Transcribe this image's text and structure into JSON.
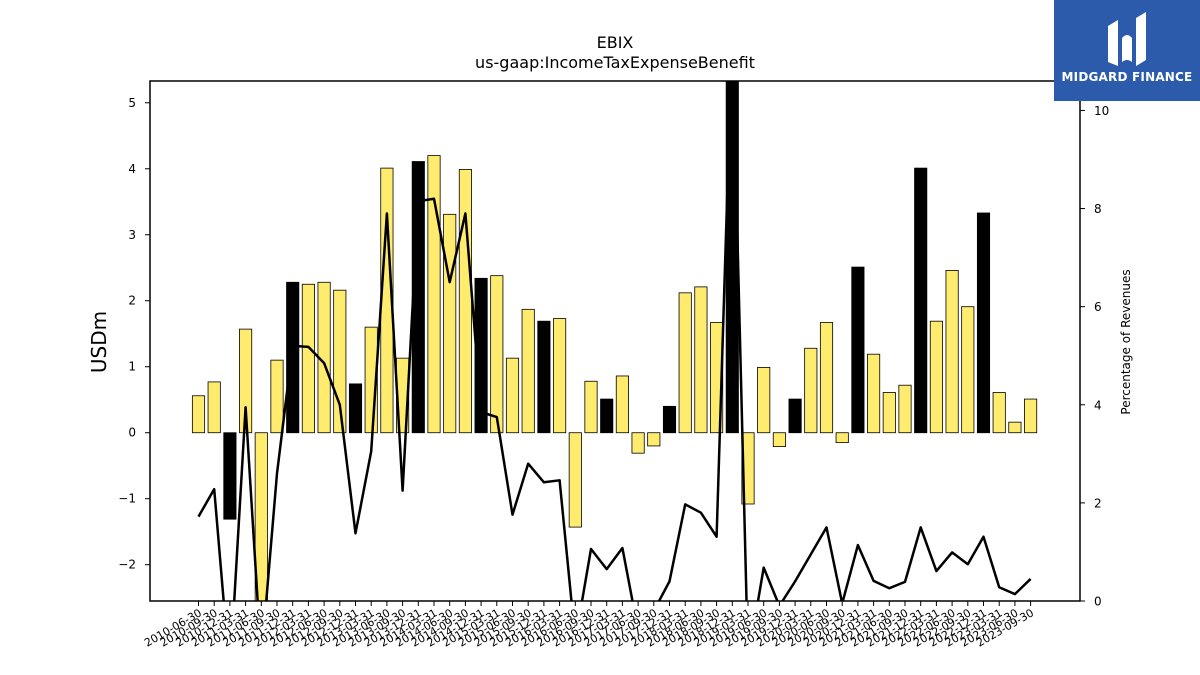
{
  "chart_data": {
    "type": "bar",
    "title": "EBIX",
    "subtitle": "us-gaap:IncomeTaxExpenseBenefit",
    "ylabel": "USDm",
    "ylabel_right": "Percentage of Revenues",
    "ylim": [
      -2.55,
      5.33
    ],
    "ylim_right": [
      0,
      10.6
    ],
    "yticks": [
      -2,
      -1,
      0,
      1,
      2,
      3,
      4,
      5
    ],
    "yticks_right": [
      0,
      2,
      4,
      6,
      8,
      10
    ],
    "colors": {
      "bar_default": "#ffec6e",
      "bar_highlight": "#000000",
      "line": "#000000",
      "bar_edge": "#000000"
    },
    "categories": [
      "2010-06-30",
      "2010-09-30",
      "2010-12-31",
      "2011-03-31",
      "2011-06-30",
      "2011-09-30",
      "2011-12-31",
      "2012-03-31",
      "2012-06-30",
      "2012-09-30",
      "2012-12-31",
      "2013-03-31",
      "2013-06-30",
      "2013-09-30",
      "2013-12-31",
      "2014-03-31",
      "2014-06-30",
      "2014-09-30",
      "2014-12-31",
      "2015-03-31",
      "2015-06-30",
      "2015-09-30",
      "2015-12-31",
      "2016-03-31",
      "2016-06-30",
      "2016-09-30",
      "2016-12-31",
      "2017-03-31",
      "2017-06-30",
      "2017-09-30",
      "2017-12-31",
      "2018-03-31",
      "2018-06-30",
      "2018-09-30",
      "2018-12-31",
      "2019-03-31",
      "2019-06-30",
      "2019-09-30",
      "2019-12-31",
      "2020-03-31",
      "2020-06-30",
      "2020-09-30",
      "2020-12-31",
      "2021-03-31",
      "2021-06-30",
      "2021-09-30",
      "2021-12-31",
      "2022-03-31",
      "2022-06-30",
      "2022-09-30",
      "2022-12-31",
      "2023-03-31",
      "2023-06-30",
      "2023-09-30"
    ],
    "xtick_labels": [
      "2010-06-30",
      "2010-09-30",
      "2010-12-31",
      "2011-03-31",
      "2011-06-30",
      "2011-09-30",
      "2011-12-31",
      "2012-03-31",
      "2012-06-30",
      "2012-09-30",
      "2012-12-31",
      "2013-03-31",
      "2013-06-30",
      "2013-09-30",
      "2013-12-31",
      "2014-03-31",
      "2014-06-30",
      "2014-09-30",
      "2014-12-31",
      "2015-03-31",
      "2015-06-30",
      "2015-09-30",
      "2015-12-31",
      "2016-03-31",
      "2016-06-30",
      "2016-09-30",
      "2016-12-31",
      "2017-03-31",
      "2017-06-30",
      "2017-09-30",
      "2017-12-31",
      "2018-03-31",
      "2018-06-30",
      "2018-09-30",
      "2018-12-31",
      "2019-03-31",
      "2019-06-30",
      "2019-09-30",
      "2019-12-31",
      "2020-03-31",
      "2020-06-30",
      "2020-09-30",
      "2020-12-31",
      "2021-03-31",
      "2021-06-30",
      "2021-09-30",
      "2021-12-31",
      "2022-03-31",
      "2022-06-30",
      "2022-09-30",
      "2022-12-31",
      "2023-03-31",
      "2023-06-30",
      "2023-09-30"
    ],
    "series": [
      {
        "type": "bar",
        "axis": "left",
        "values": [
          0.56,
          0.77,
          -1.31,
          1.57,
          -2.6,
          1.1,
          2.28,
          2.25,
          2.28,
          2.16,
          0.74,
          1.6,
          4.01,
          1.13,
          4.11,
          4.2,
          3.31,
          3.99,
          2.34,
          2.38,
          1.13,
          1.87,
          1.69,
          1.73,
          -1.43,
          0.78,
          0.51,
          0.86,
          -0.31,
          -0.2,
          0.4,
          2.12,
          2.21,
          1.67,
          5.8,
          -1.08,
          0.99,
          -0.21,
          0.51,
          1.28,
          1.67,
          -0.15,
          2.51,
          1.19,
          0.61,
          0.72,
          4.01,
          1.69,
          2.46,
          1.91,
          3.33,
          0.61,
          0.16,
          0.51
        ],
        "highlight": [
          false,
          false,
          true,
          false,
          false,
          false,
          true,
          false,
          false,
          false,
          true,
          false,
          false,
          false,
          true,
          false,
          false,
          false,
          true,
          false,
          false,
          false,
          true,
          false,
          false,
          false,
          true,
          false,
          false,
          false,
          true,
          false,
          false,
          false,
          true,
          false,
          false,
          false,
          true,
          false,
          false,
          false,
          true,
          false,
          false,
          false,
          true,
          false,
          false,
          false,
          true,
          false,
          false,
          false
        ]
      },
      {
        "type": "line",
        "axis": "right",
        "values": [
          1.72,
          2.28,
          -1.5,
          3.95,
          -1.2,
          2.6,
          5.2,
          5.18,
          4.85,
          4.0,
          1.38,
          3.05,
          7.9,
          2.25,
          8.15,
          8.2,
          6.5,
          7.9,
          3.85,
          3.75,
          1.76,
          2.8,
          2.42,
          2.46,
          -0.8,
          1.06,
          0.65,
          1.08,
          -0.6,
          -0.2,
          0.4,
          1.97,
          1.8,
          1.31,
          11.6,
          -1.2,
          0.68,
          -0.1,
          0.4,
          0.95,
          1.5,
          -0.05,
          1.14,
          0.41,
          0.26,
          0.39,
          1.5,
          0.61,
          0.99,
          0.75,
          1.31,
          0.28,
          0.14,
          0.45
        ]
      }
    ]
  },
  "logo": {
    "text": "MIDGARD FINANCE"
  }
}
